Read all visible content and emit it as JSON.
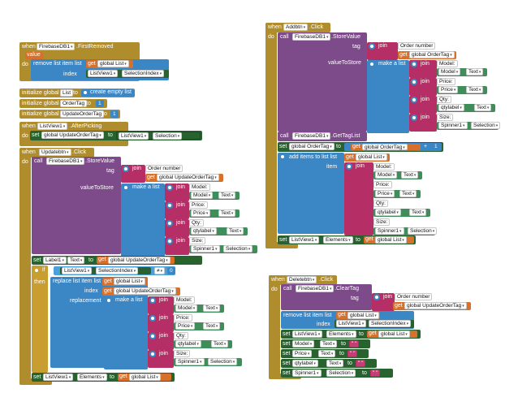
{
  "b1": {
    "when": "when",
    "component": "FirebaseDB1",
    "event": ".FirstRemoved",
    "param": "value",
    "do": "do",
    "remove_list_item": "remove list item list",
    "get": "get",
    "list_var": "global List",
    "index_label": "index",
    "listview": "ListView1",
    "prop": "SelectionIndex"
  },
  "init": [
    {
      "label": "initialize global",
      "name": "List",
      "to": "to",
      "value": "create empty list"
    },
    {
      "label": "initialize global",
      "name": "OrderTag",
      "to": "to",
      "value": "1"
    },
    {
      "label": "initialize global",
      "name": "UpdateOrderTag",
      "to": "to",
      "value": "1"
    }
  ],
  "b2": {
    "when": "when",
    "component": "ListView1",
    "event": ".AfterPicking",
    "do": "do",
    "set": "set",
    "var": "global UpdateOrderTag",
    "to": "to",
    "listview": "ListView1",
    "prop": "Selection"
  },
  "b3": {
    "when": "when",
    "component": "Updatebtn",
    "event": ".Click",
    "do": "do",
    "call": "call",
    "db": "FirebaseDB1",
    "method": ".StoreValue",
    "tag": "tag",
    "join": "join",
    "order_number": " Order number ",
    "get": "get",
    "update_tag": "global UpdateOrderTag",
    "value_to_store": "valueToStore",
    "make_list": "make a list",
    "rows": [
      {
        "text": " Model: ",
        "comp": "Model",
        "prop": "Text"
      },
      {
        "text": " Price: ",
        "comp": "Price",
        "prop": "Text"
      },
      {
        "text": " Qty: ",
        "comp": "qtylabel",
        "prop": "Text"
      },
      {
        "text": " Size: ",
        "comp": "Spinner1",
        "prop": "Selection"
      }
    ],
    "set": "set",
    "label": "Label1",
    "label_prop": "Text",
    "to": "to",
    "if": "if",
    "then": "then",
    "listview": "ListView1",
    "sel_index": "SelectionIndex",
    "neq": "≠",
    "zero": "0",
    "replace": "replace list item list",
    "list_var": "global List",
    "index": "index",
    "replacement": "replacement",
    "elements": "Elements"
  },
  "b4": {
    "when": "when",
    "component": "Addbtn",
    "event": ".Click",
    "do": "do",
    "call": "call",
    "db": "FirebaseDB1",
    "method": ".StoreValue",
    "tag": "tag",
    "join": "join",
    "order_number": " Order number ",
    "get": "get",
    "order_tag": "global OrderTag",
    "value_to_store": "valueToStore",
    "make_list": "make a list",
    "rows": [
      {
        "text": " Model: ",
        "comp": "Model",
        "prop": "Text"
      },
      {
        "text": " Price: ",
        "comp": "Price",
        "prop": "Text"
      },
      {
        "text": " Qty: ",
        "comp": "qtylabel",
        "prop": "Text"
      },
      {
        "text": " Size: ",
        "comp": "Spinner1",
        "prop": "Selection"
      }
    ],
    "gettag_method": ".GetTagList",
    "set": "set",
    "to": "to",
    "plus": "+",
    "one": "1",
    "add_items": "add items to list list",
    "list_var": "global List",
    "item": "item",
    "listview": "ListView1",
    "elements": "Elements"
  },
  "b5": {
    "when": "when",
    "component": "Deletebtn",
    "event": ".Click",
    "do": "do",
    "call": "call",
    "db": "FirebaseDB1",
    "method": ".ClearTag",
    "tag": "tag",
    "join": "join",
    "order_number": " Order number ",
    "get": "get",
    "update_tag": "global UpdateOrderTag",
    "remove": "remove list item list",
    "list_var": "global List",
    "index": "index",
    "listview": "ListView1",
    "sel_index": "SelectionIndex",
    "set": "set",
    "elements": "Elements",
    "to": "to",
    "clears": [
      {
        "comp": "Model",
        "prop": "Text"
      },
      {
        "comp": "Price",
        "prop": "Text"
      },
      {
        "comp": "qtylabel",
        "prop": "Text"
      },
      {
        "comp": "Spinner1",
        "prop": "Selection"
      }
    ],
    "empty": "\" \""
  }
}
